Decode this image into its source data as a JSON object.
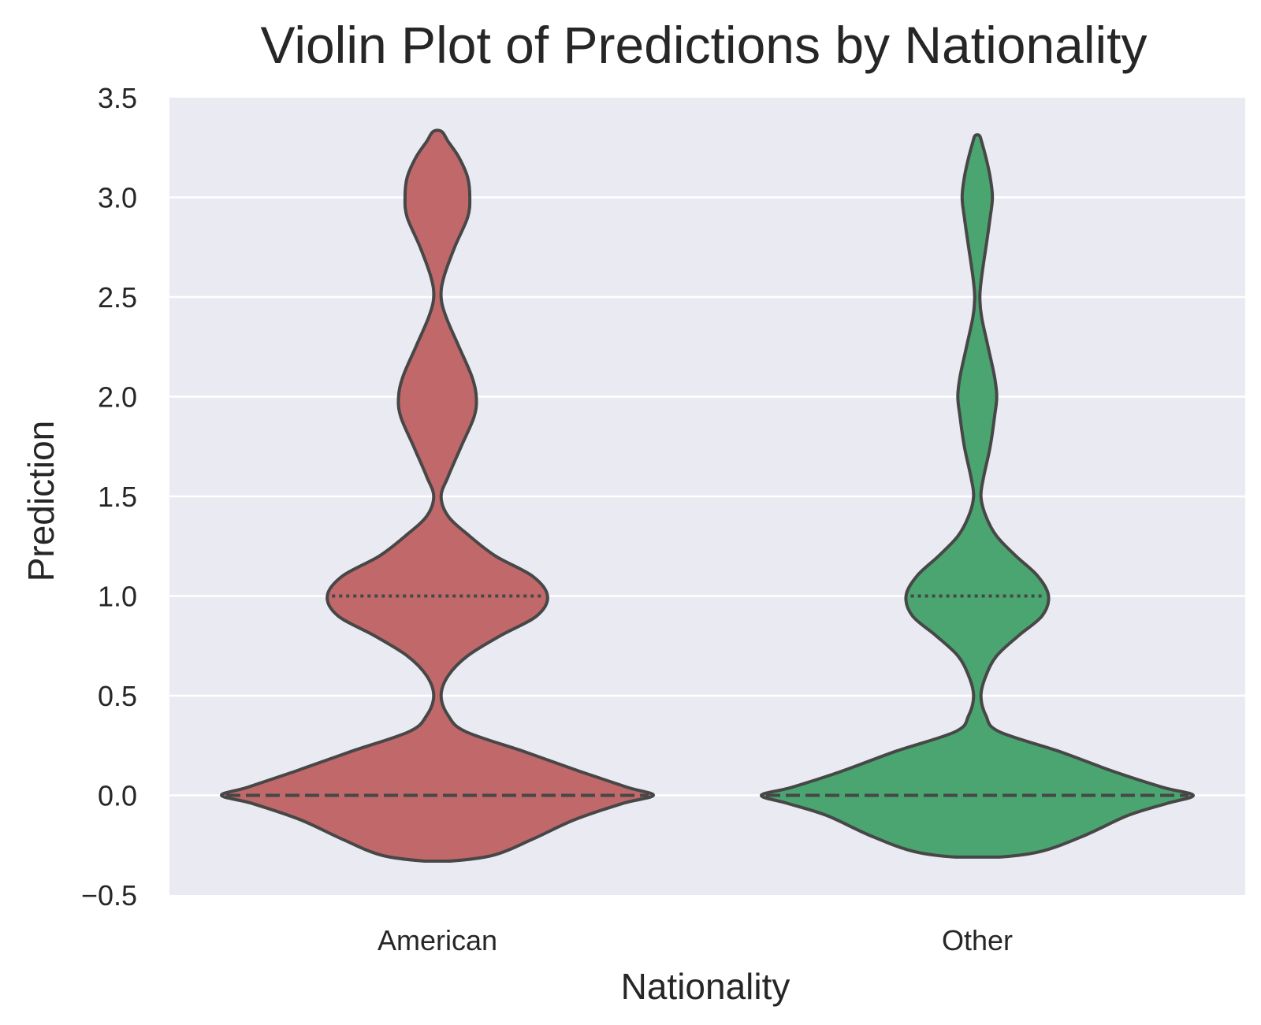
{
  "chart_data": {
    "type": "violin",
    "title": "Violin Plot of Predictions by Nationality",
    "xlabel": "Nationality",
    "ylabel": "Prediction",
    "categories": [
      "American",
      "Other"
    ],
    "ylim": [
      -0.5,
      3.5
    ],
    "yticks": [
      -0.5,
      0.0,
      0.5,
      1.0,
      1.5,
      2.0,
      2.5,
      3.0,
      3.5
    ],
    "ytick_labels": [
      "−0.5",
      "0.0",
      "0.5",
      "1.0",
      "1.5",
      "2.0",
      "2.5",
      "3.0",
      "3.5"
    ],
    "grid": true,
    "legend": "none",
    "series": [
      {
        "category": "American",
        "color": "#c0686a",
        "y_min": -0.33,
        "y_max": 3.33,
        "median": 0.0,
        "q1": 0.0,
        "q3": 1.0,
        "density_profile": [
          [
            -0.33,
            0.06
          ],
          [
            -0.3,
            0.26
          ],
          [
            -0.22,
            0.44
          ],
          [
            -0.12,
            0.64
          ],
          [
            -0.04,
            0.86
          ],
          [
            0.0,
            1.0
          ],
          [
            0.04,
            0.88
          ],
          [
            0.12,
            0.66
          ],
          [
            0.22,
            0.4
          ],
          [
            0.32,
            0.13
          ],
          [
            0.4,
            0.05
          ],
          [
            0.5,
            0.017
          ],
          [
            0.6,
            0.05
          ],
          [
            0.7,
            0.14
          ],
          [
            0.8,
            0.29
          ],
          [
            0.9,
            0.46
          ],
          [
            1.0,
            0.51
          ],
          [
            1.1,
            0.44
          ],
          [
            1.2,
            0.27
          ],
          [
            1.3,
            0.15
          ],
          [
            1.4,
            0.05
          ],
          [
            1.5,
            0.017
          ],
          [
            1.6,
            0.05
          ],
          [
            1.75,
            0.11
          ],
          [
            1.9,
            0.17
          ],
          [
            2.0,
            0.18
          ],
          [
            2.1,
            0.16
          ],
          [
            2.25,
            0.1
          ],
          [
            2.4,
            0.04
          ],
          [
            2.5,
            0.017
          ],
          [
            2.6,
            0.03
          ],
          [
            2.75,
            0.08
          ],
          [
            2.9,
            0.14
          ],
          [
            3.0,
            0.15
          ],
          [
            3.1,
            0.14
          ],
          [
            3.2,
            0.1
          ],
          [
            3.28,
            0.05
          ],
          [
            3.33,
            0.02
          ]
        ]
      },
      {
        "category": "Other",
        "color": "#4aa570",
        "y_min": -0.31,
        "y_max": 3.31,
        "median": 0.0,
        "q1": 0.0,
        "q3": 1.0,
        "density_profile": [
          [
            -0.31,
            0.1
          ],
          [
            -0.28,
            0.3
          ],
          [
            -0.2,
            0.5
          ],
          [
            -0.1,
            0.7
          ],
          [
            -0.04,
            0.88
          ],
          [
            0.0,
            1.0
          ],
          [
            0.04,
            0.86
          ],
          [
            0.12,
            0.63
          ],
          [
            0.22,
            0.38
          ],
          [
            0.32,
            0.1
          ],
          [
            0.4,
            0.04
          ],
          [
            0.5,
            0.017
          ],
          [
            0.6,
            0.04
          ],
          [
            0.7,
            0.09
          ],
          [
            0.8,
            0.19
          ],
          [
            0.9,
            0.3
          ],
          [
            1.0,
            0.33
          ],
          [
            1.1,
            0.28
          ],
          [
            1.2,
            0.18
          ],
          [
            1.3,
            0.09
          ],
          [
            1.4,
            0.04
          ],
          [
            1.5,
            0.017
          ],
          [
            1.6,
            0.03
          ],
          [
            1.75,
            0.06
          ],
          [
            1.9,
            0.08
          ],
          [
            2.0,
            0.09
          ],
          [
            2.1,
            0.08
          ],
          [
            2.25,
            0.05
          ],
          [
            2.4,
            0.02
          ],
          [
            2.5,
            0.012
          ],
          [
            2.6,
            0.02
          ],
          [
            2.75,
            0.04
          ],
          [
            2.9,
            0.06
          ],
          [
            3.0,
            0.07
          ],
          [
            3.1,
            0.06
          ],
          [
            3.2,
            0.04
          ],
          [
            3.28,
            0.02
          ],
          [
            3.31,
            0.01
          ]
        ]
      }
    ]
  }
}
